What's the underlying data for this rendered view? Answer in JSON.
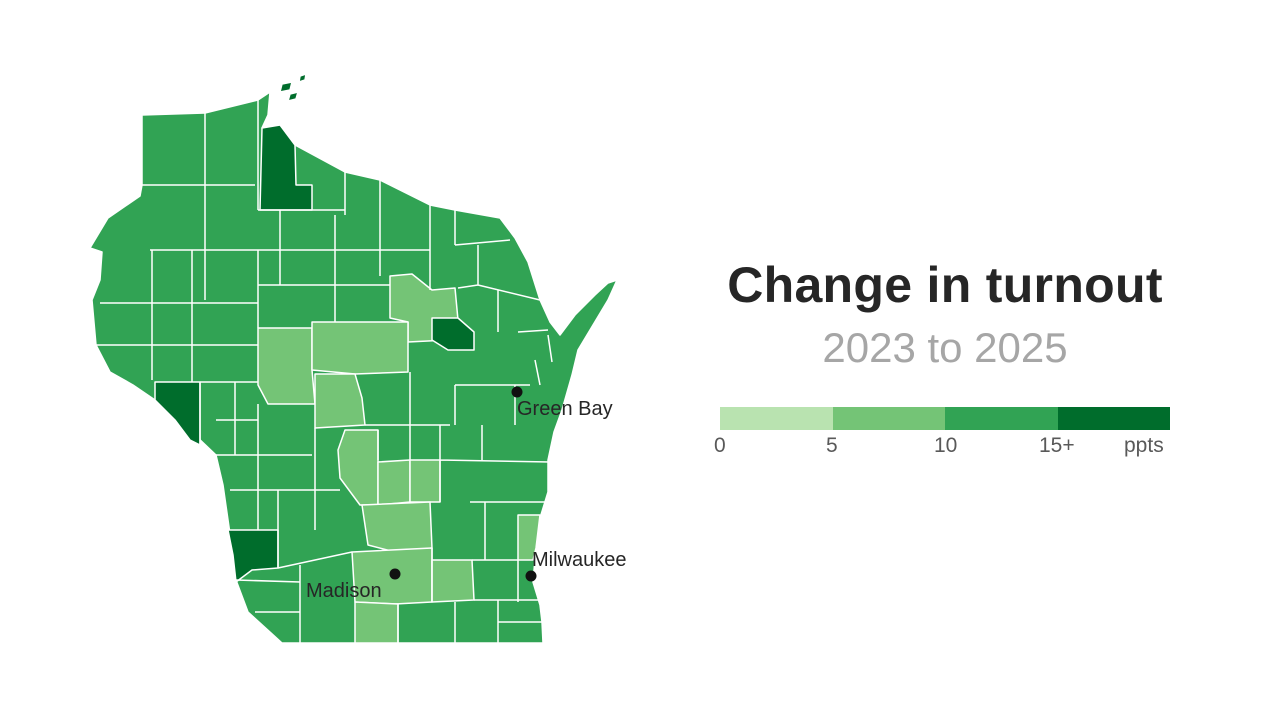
{
  "title": "Change in turnout",
  "subtitle": "2023 to 2025",
  "legend": {
    "unit": "ppts",
    "bins": [
      {
        "label": "0",
        "color": "#b9e3b0"
      },
      {
        "label": "5",
        "color": "#74c476"
      },
      {
        "label": "10",
        "color": "#31a354"
      },
      {
        "label": "15+",
        "color": "#006d2c"
      }
    ]
  },
  "cities": [
    {
      "name": "Green Bay"
    },
    {
      "name": "Milwaukee"
    },
    {
      "name": "Madison"
    }
  ],
  "colors": {
    "light": "#74c476",
    "mid": "#31a354",
    "dark": "#006d2c",
    "border": "#ffffff"
  }
}
